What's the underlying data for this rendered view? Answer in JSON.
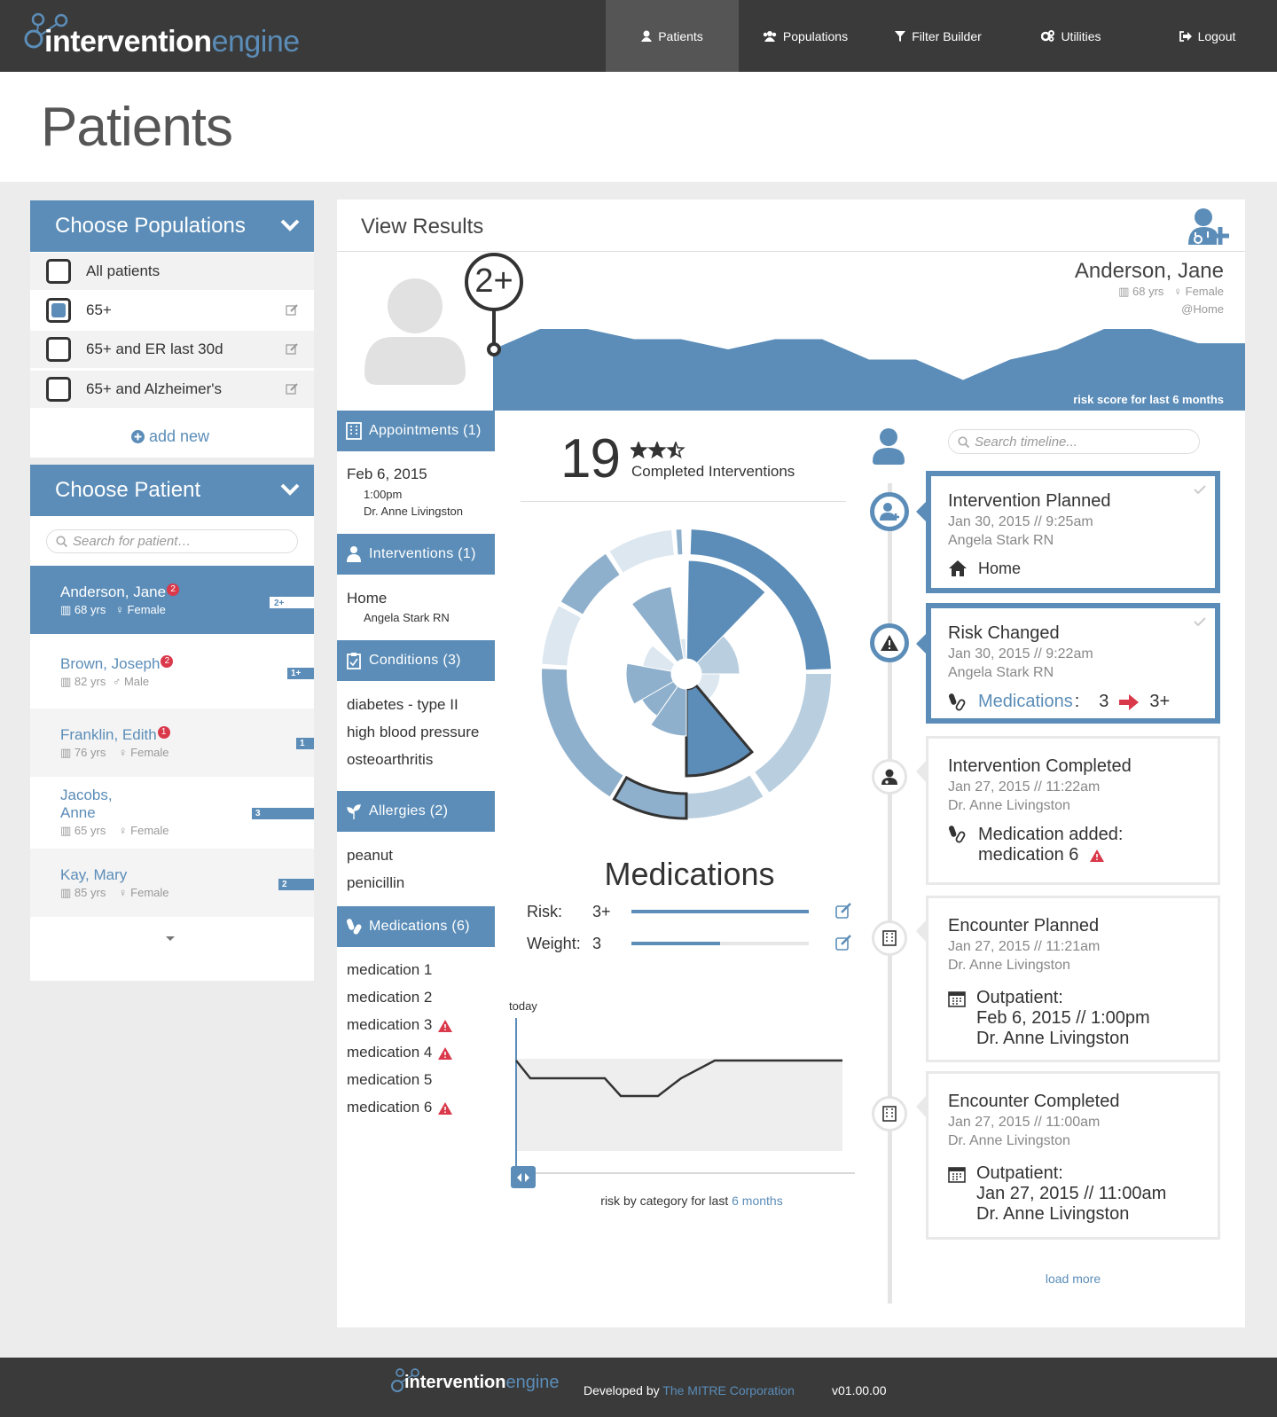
{
  "app": {
    "logo_main": "intervention",
    "logo_accent": "engine"
  },
  "nav": {
    "items": [
      {
        "label": "Patients",
        "icon": "user-icon"
      },
      {
        "label": "Populations",
        "icon": "group-icon"
      },
      {
        "label": "Filter Builder",
        "icon": "filter-icon"
      },
      {
        "label": "Utilities",
        "icon": "gears-icon"
      },
      {
        "label": "Logout",
        "icon": "logout-icon"
      }
    ],
    "active": "Patients"
  },
  "page": {
    "title": "Patients"
  },
  "populations": {
    "heading": "Choose Populations",
    "items": [
      {
        "label": "All patients",
        "checked": false,
        "editable": false
      },
      {
        "label": "65+",
        "checked": true,
        "editable": true
      },
      {
        "label": "65+ and ER last 30d",
        "checked": false,
        "editable": true
      },
      {
        "label": "65+ and Alzheimer's",
        "checked": false,
        "editable": true
      }
    ],
    "add_new": "add new"
  },
  "patients": {
    "heading": "Choose Patient",
    "search_placeholder": "Search for patient…",
    "list": [
      {
        "name": "Anderson, Jane",
        "badge": "2",
        "age": "68 yrs",
        "gender": "Female",
        "risk": "2+",
        "risk_fraction": 0.15,
        "selected": true
      },
      {
        "name": "Brown, Joseph",
        "badge": "2",
        "age": "82 yrs",
        "gender": "Male",
        "risk": "1+",
        "risk_fraction": 0.09,
        "selected": false
      },
      {
        "name": "Franklin, Edith",
        "badge": "1",
        "age": "76 yrs",
        "gender": "Female",
        "risk": "1",
        "risk_fraction": 0.06,
        "selected": false
      },
      {
        "name_line1": "Jacobs,",
        "name_line2": "Anne",
        "badge": "",
        "age": "65 yrs",
        "gender": "Female",
        "risk": "3",
        "risk_fraction": 0.22,
        "selected": false
      },
      {
        "name": "Kay, Mary",
        "badge": "",
        "age": "85 yrs",
        "gender": "Female",
        "risk": "2",
        "risk_fraction": 0.12,
        "selected": false
      }
    ]
  },
  "results": {
    "heading": "View Results",
    "patient_name": "Anderson, Jane",
    "age": "68 yrs",
    "gender": "Female",
    "location": "@Home",
    "risk_pin": "2+",
    "risk_chart_caption": "risk score for last 6 months",
    "risk_series": [
      3,
      4,
      4,
      3.5,
      3.5,
      3,
      3.5,
      3.5,
      2.5,
      2.5,
      1.5,
      2.5,
      3,
      4,
      4,
      3.3,
      3.3
    ]
  },
  "sections": {
    "appointments": {
      "label": "Appointments (1)",
      "date": "Feb 6, 2015",
      "time": "1:00pm",
      "doctor": "Dr. Anne Livingston"
    },
    "interventions": {
      "label": "Interventions (1)",
      "place": "Home",
      "person": "Angela Stark RN"
    },
    "conditions": {
      "label": "Conditions (3)",
      "items": [
        "diabetes - type II",
        "high blood pressure",
        "osteoarthritis"
      ]
    },
    "allergies": {
      "label": "Allergies (2)",
      "items": [
        "peanut",
        "penicillin"
      ]
    },
    "medications": {
      "label": "Medications (6)",
      "items": [
        {
          "name": "medication 1",
          "warn": false
        },
        {
          "name": "medication 2",
          "warn": false
        },
        {
          "name": "medication 3",
          "warn": true
        },
        {
          "name": "medication 4",
          "warn": true
        },
        {
          "name": "medication 5",
          "warn": false
        },
        {
          "name": "medication 6",
          "warn": true
        }
      ]
    }
  },
  "summary": {
    "count": "19",
    "stars": 2.5,
    "label": "Completed Interventions"
  },
  "category": {
    "title": "Medications",
    "risk_label": "Risk:",
    "risk_value": "3+",
    "risk_fraction": 1.0,
    "weight_label": "Weight:",
    "weight_value": "3",
    "weight_fraction": 0.5,
    "today_label": "today",
    "caption_prefix": "risk by category for last",
    "caption_link": "6 months",
    "history": [
      3,
      2,
      2,
      2,
      1,
      1,
      2,
      3,
      3,
      3,
      3,
      3
    ]
  },
  "timeline": {
    "search_placeholder": "Search timeline...",
    "load_more": "load more",
    "events": [
      {
        "title": "Intervention Planned",
        "date": "Jan 30, 2015  //  9:25am",
        "author": "Angela Stark RN",
        "body": "Home",
        "icon": "nurse-plus-icon",
        "body_icon": "home-icon",
        "highlight": true
      },
      {
        "title": "Risk Changed",
        "date": "Jan 30, 2015  //  9:22am",
        "author": "Angela Stark RN",
        "body_label": "Medications",
        "from": "3",
        "to": "3+",
        "icon": "warning-icon",
        "body_icon": "pills-icon",
        "highlight": true
      },
      {
        "title": "Intervention Completed",
        "date": "Jan 27, 2015  //  11:22am",
        "author": "Dr. Anne Livingston",
        "body_line1": "Medication added:",
        "body_line2": "medication 6",
        "icon": "nurse-icon",
        "body_icon": "pills-icon",
        "highlight": false
      },
      {
        "title": "Encounter Planned",
        "date": "Jan 27, 2015  //  11:21am",
        "author": "Dr. Anne Livingston",
        "body_line1": "Outpatient:",
        "body_line2": "Feb 6, 2015 // 1:00pm",
        "body_line3": "Dr. Anne Livingston",
        "icon": "hospital-icon",
        "body_icon": "calendar-icon",
        "highlight": false
      },
      {
        "title": "Encounter Completed",
        "date": "Jan 27, 2015  //  11:00am",
        "author": "Dr. Anne Livingston",
        "body_line1": "Outpatient:",
        "body_line2": "Jan 27, 2015 // 11:00am",
        "body_line3": "Dr. Anne Livingston",
        "icon": "hospital-icon",
        "body_icon": "calendar-icon",
        "highlight": false
      }
    ]
  },
  "footer": {
    "dev_prefix": "Developed by",
    "dev_link": "The MITRE Corporation",
    "version": "v01.00.00"
  },
  "colors": {
    "accent": "#5b8db8",
    "nav_bg": "#3a3a3a",
    "warning": "#d9394a"
  }
}
